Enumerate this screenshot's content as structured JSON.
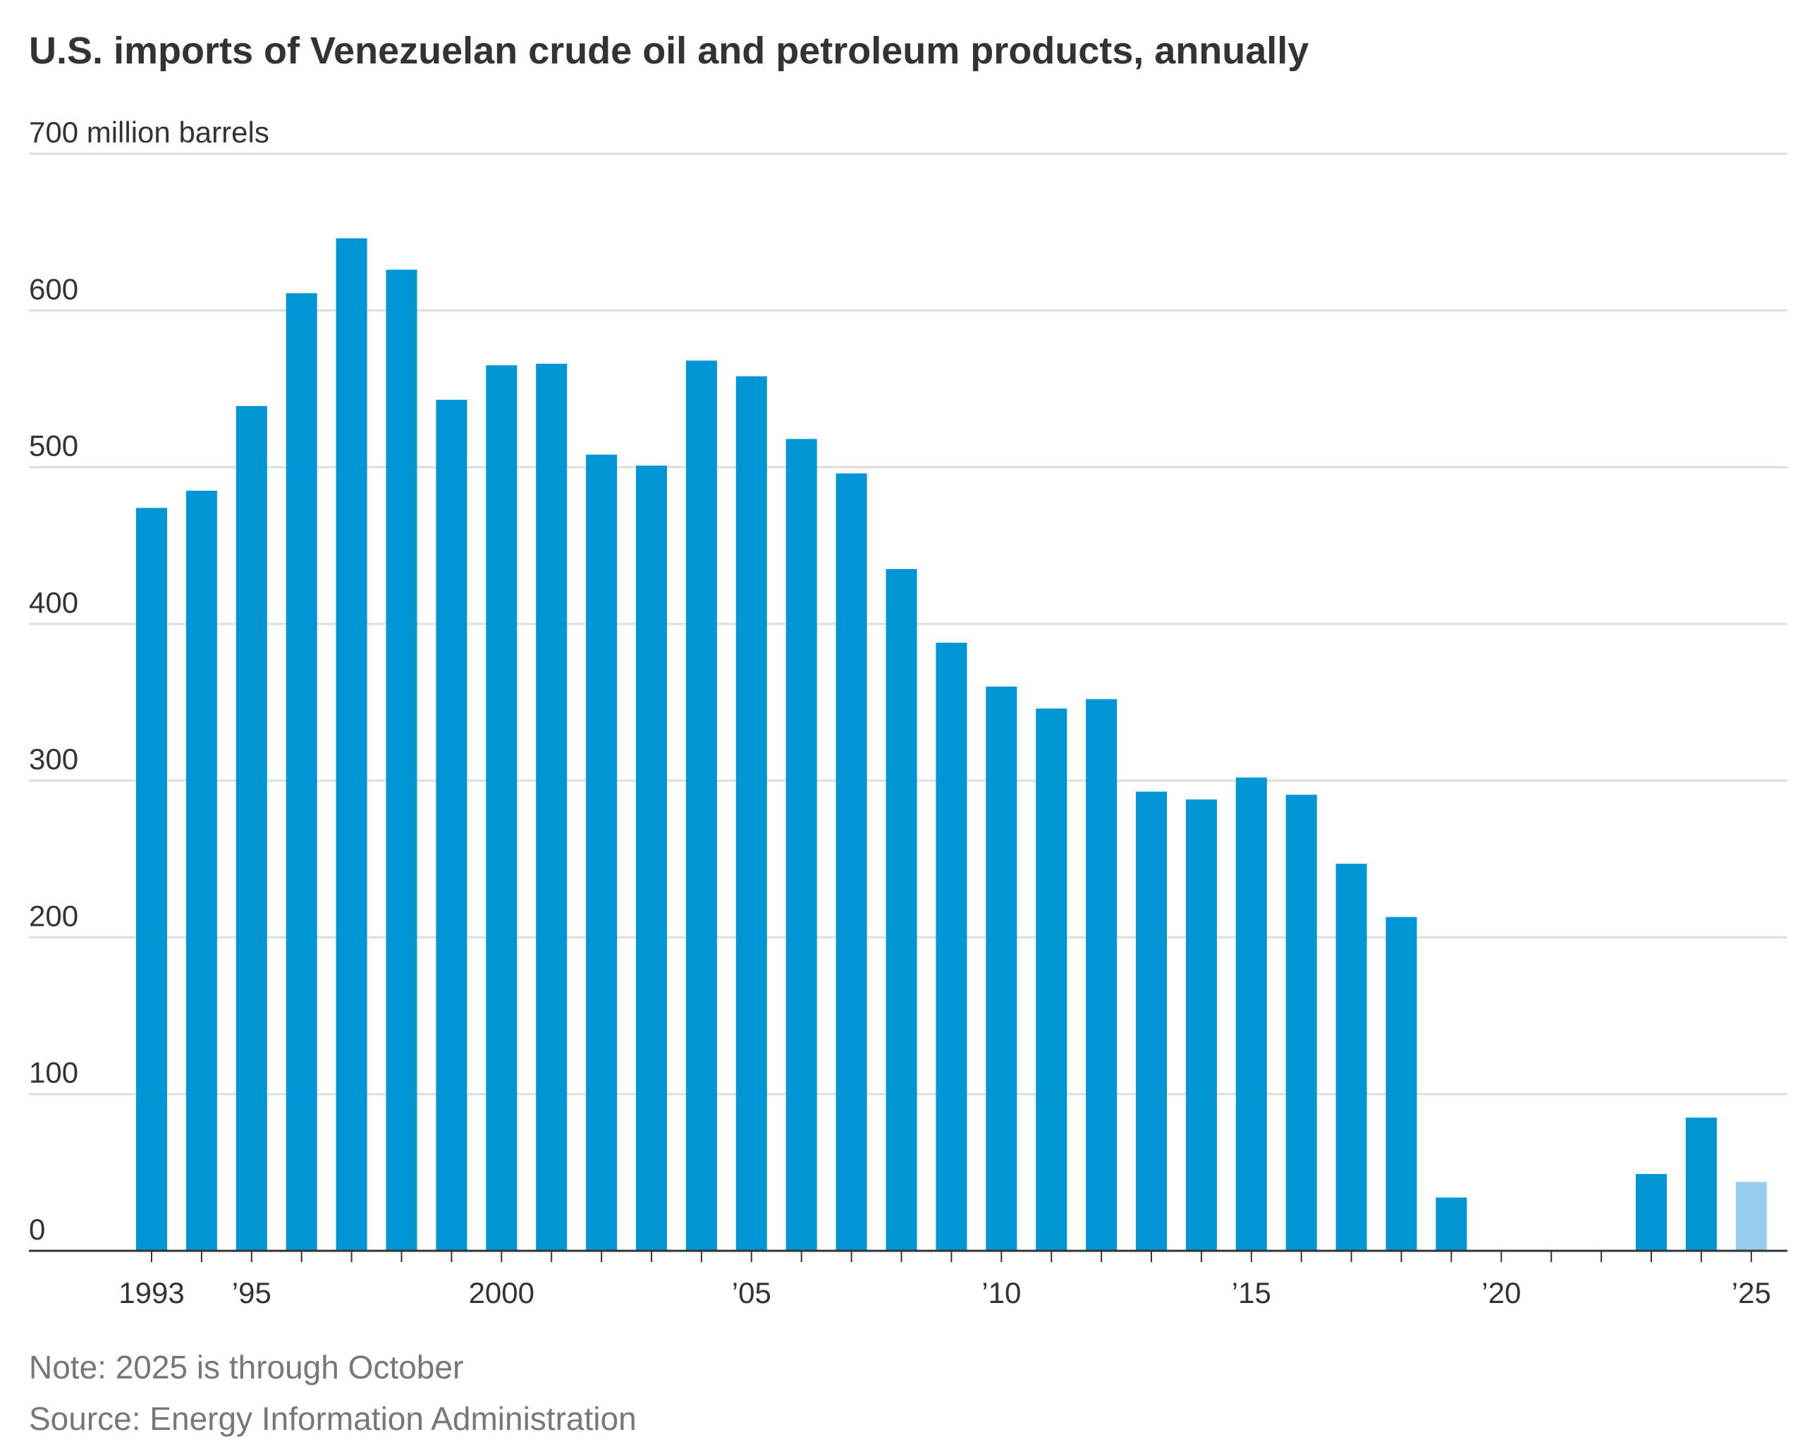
{
  "chart_data": {
    "type": "bar",
    "title": "U.S. imports of Venezuelan crude oil and petroleum products, annually",
    "note": "Note: 2025 is through October",
    "source": "Source: Energy Information Administration",
    "categories": [
      "1993",
      null,
      "’95",
      null,
      null,
      null,
      null,
      "2000",
      null,
      null,
      null,
      null,
      "’05",
      null,
      null,
      null,
      null,
      "’10",
      null,
      null,
      null,
      null,
      "’15",
      null,
      null,
      null,
      null,
      "’20",
      null,
      null,
      null,
      null,
      "’25"
    ],
    "values": [
      474,
      485,
      539,
      611,
      646,
      626,
      543,
      565,
      566,
      508,
      501,
      568,
      558,
      518,
      496,
      435,
      388,
      360,
      346,
      352,
      293,
      288,
      302,
      291,
      247,
      213,
      34,
      0,
      0,
      0,
      49,
      85,
      44
    ],
    "colors": [
      "#0096d6",
      "#0096d6",
      "#0096d6",
      "#0096d6",
      "#0096d6",
      "#0096d6",
      "#0096d6",
      "#0096d6",
      "#0096d6",
      "#0096d6",
      "#0096d6",
      "#0096d6",
      "#0096d6",
      "#0096d6",
      "#0096d6",
      "#0096d6",
      "#0096d6",
      "#0096d6",
      "#0096d6",
      "#0096d6",
      "#0096d6",
      "#0096d6",
      "#0096d6",
      "#0096d6",
      "#0096d6",
      "#0096d6",
      "#0096d6",
      "#0096d6",
      "#0096d6",
      "#0096d6",
      "#0096d6",
      "#0096d6",
      "#99cdee"
    ],
    "ylim": [
      0,
      700
    ],
    "yticks": [
      0,
      100,
      200,
      300,
      400,
      500,
      600,
      {
        "value": 700,
        "label": "700 million barrels"
      }
    ],
    "grid": true
  }
}
